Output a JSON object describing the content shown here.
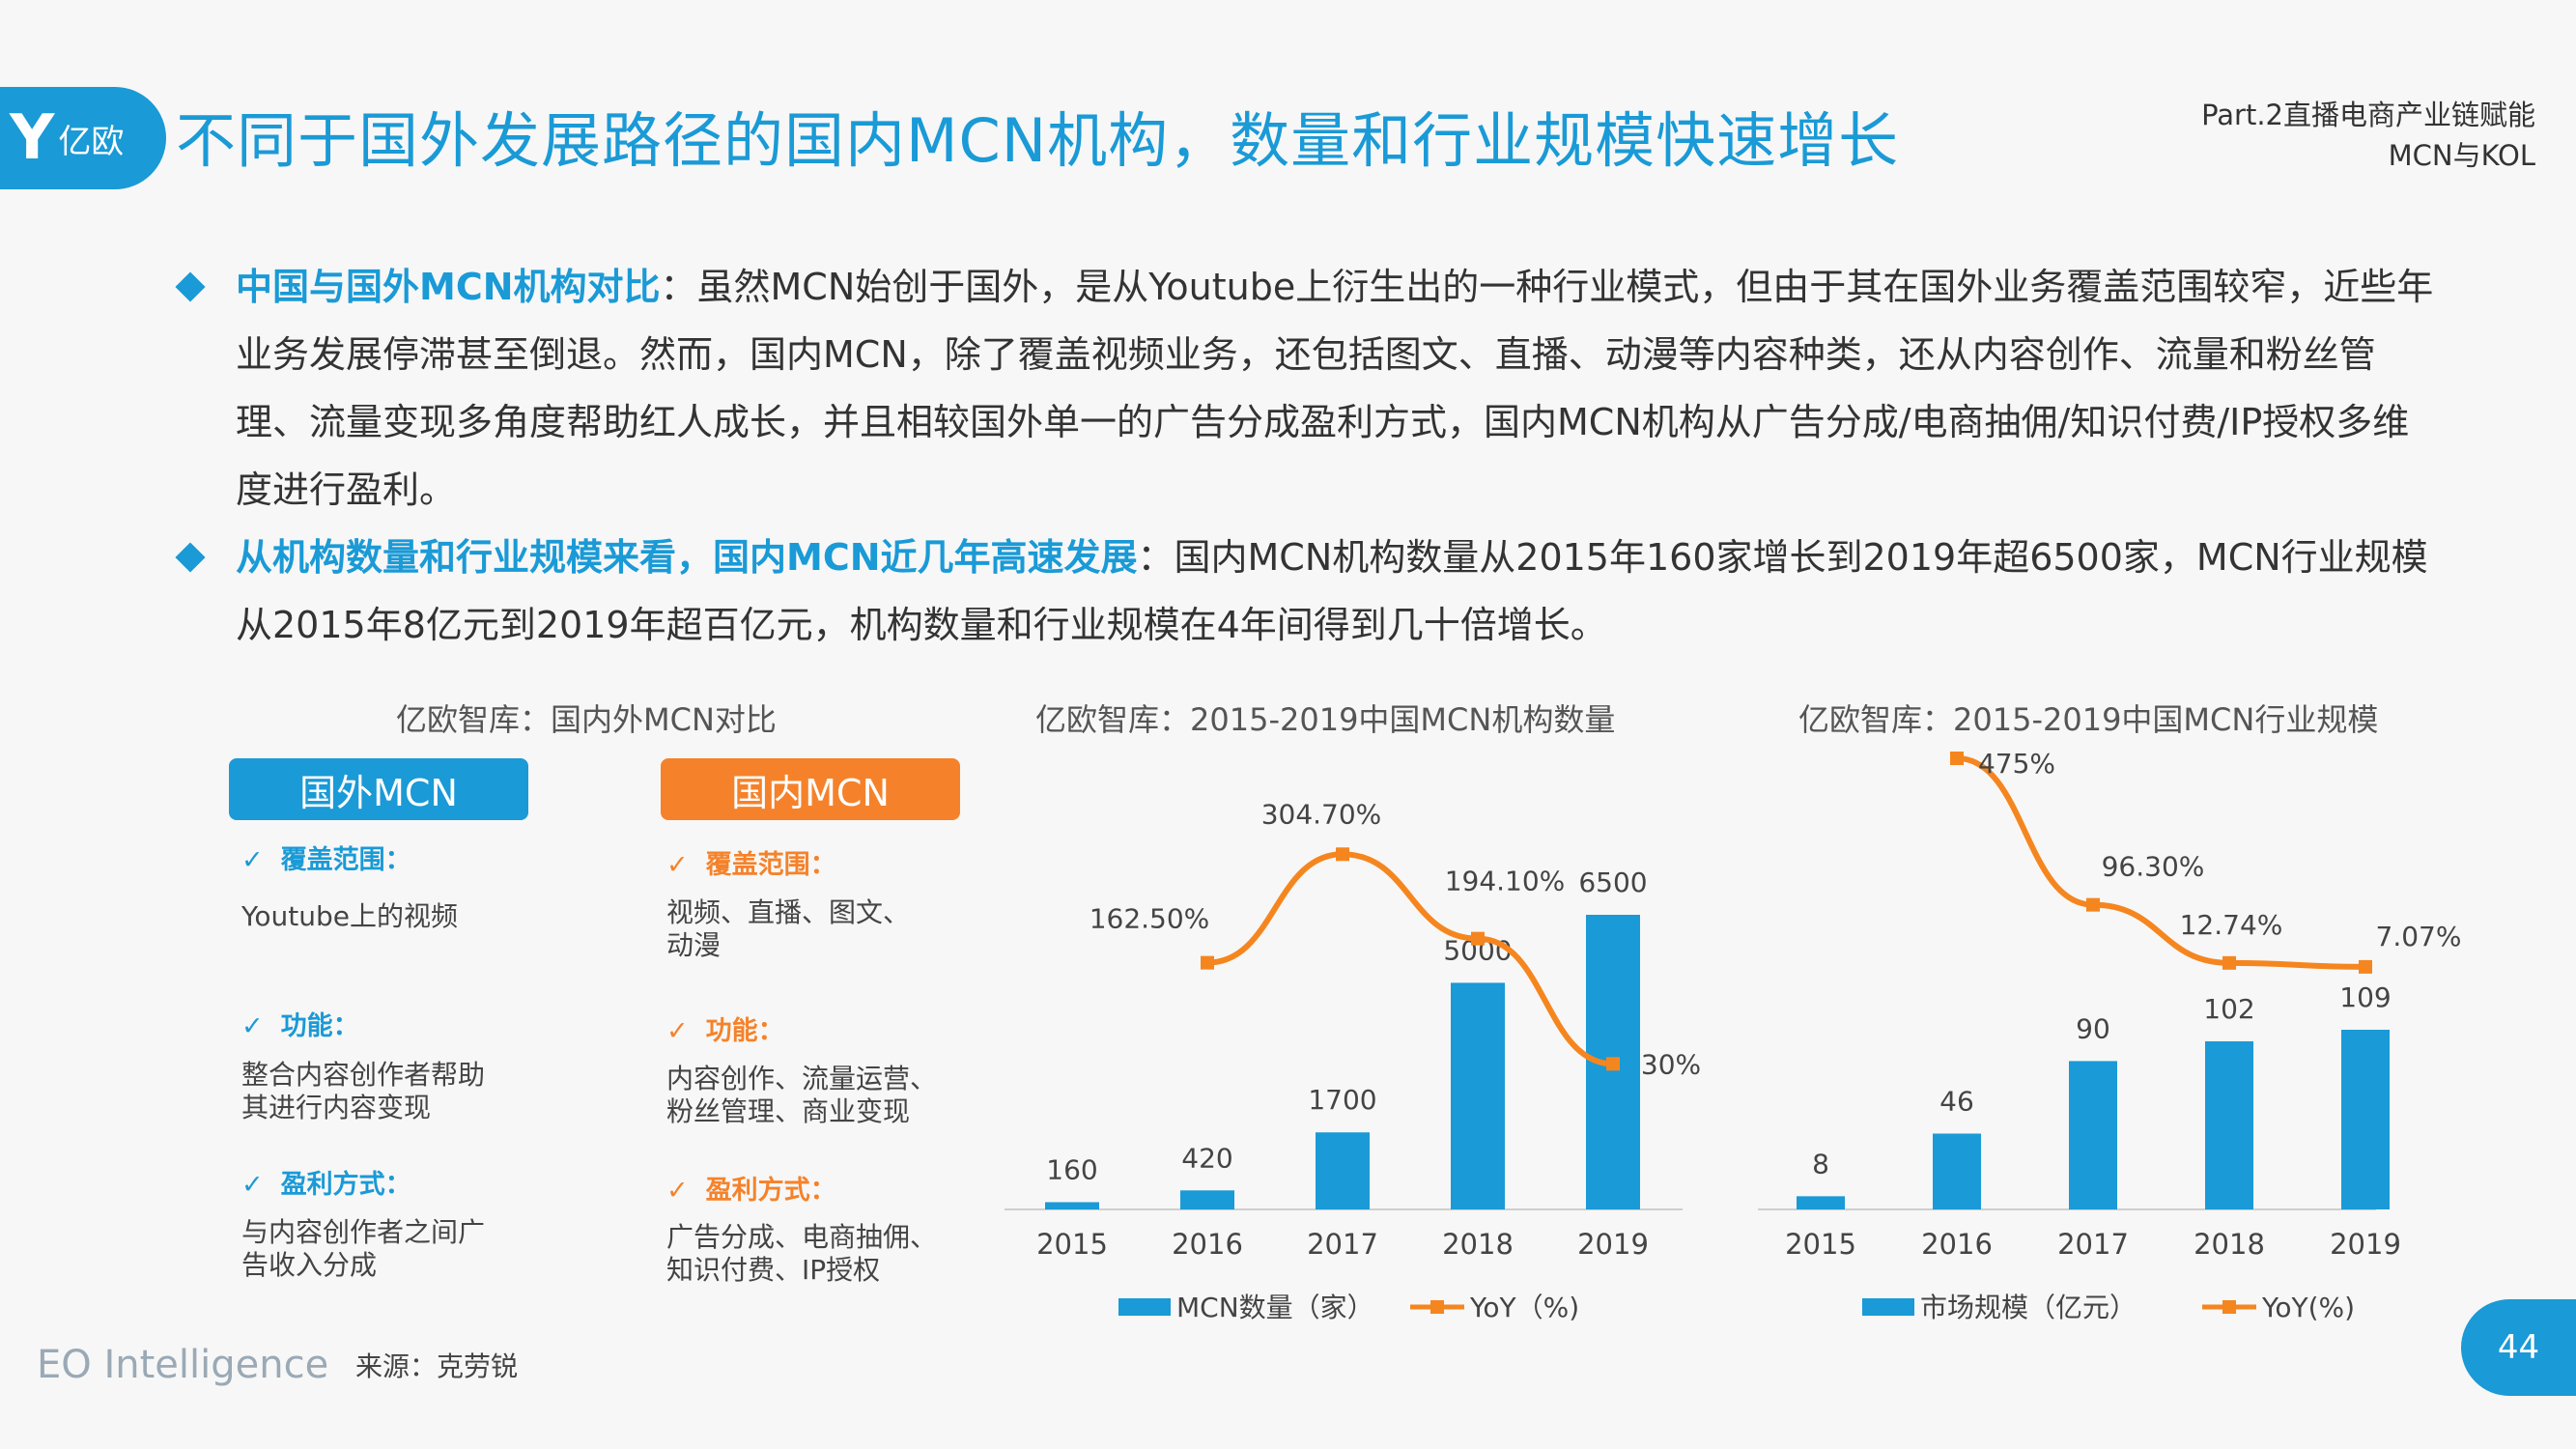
{
  "header": {
    "logo_mark": "Y",
    "logo_text": "亿欧",
    "title": "不同于国外发展路径的国内MCN机构，数量和行业规模快速增长",
    "section_line1": "Part.2直播电商产业链赋能",
    "section_line2": "MCN与KOL"
  },
  "bullets": [
    {
      "lead": "中国与国外MCN机构对比",
      "text": "：虽然MCN始创于国外，是从Youtube上衍生出的一种行业模式，但由于其在国外业务覆盖范围较窄，近些年业务发展停滞甚至倒退。然而，国内MCN，除了覆盖视频业务，还包括图文、直播、动漫等内容种类，还从内容创作、流量和粉丝管理、流量变现多角度帮助红人成长，并且相较国外单一的广告分成盈利方式，国内MCN机构从广告分成/电商抽佣/知识付费/IP授权多维度进行盈利。"
    },
    {
      "lead": "从机构数量和行业规模来看，国内MCN近几年高速发展",
      "text": "：国内MCN机构数量从2015年160家增长到2019年超6500家，MCN行业规模从2015年8亿元到2019年超百亿元，机构数量和行业规模在4年间得到几十倍增长。"
    }
  ],
  "comparison": {
    "title": "亿欧智库：国内外MCN对比",
    "foreign": {
      "label": "国外MCN",
      "coverage_head": "覆盖范围：",
      "coverage": "Youtube上的视频",
      "function_head": "功能：",
      "function": "整合内容创作者帮助\n其进行内容变现",
      "profit_head": "盈利方式：",
      "profit": "与内容创作者之间广\n告收入分成"
    },
    "domestic": {
      "label": "国内MCN",
      "coverage_head": "覆盖范围：",
      "coverage": "视频、直播、图文、\n动漫",
      "function_head": "功能：",
      "function": "内容创作、流量运营、\n粉丝管理、商业变现",
      "profit_head": "盈利方式：",
      "profit": "广告分成、电商抽佣、\n知识付费、IP授权"
    },
    "check_mark": "✓"
  },
  "chart_data": [
    {
      "type": "bar",
      "title": "亿欧智库：2015-2019中国MCN机构数量",
      "categories": [
        "2015",
        "2016",
        "2017",
        "2018",
        "2019"
      ],
      "series": [
        {
          "name": "MCN数量（家）",
          "type": "bar",
          "values": [
            160,
            420,
            1700,
            5000,
            6500
          ],
          "labels": [
            "160",
            "420",
            "1700",
            "5000",
            "6500"
          ],
          "color": "#1a9ad6"
        },
        {
          "name": "YoY（%)",
          "type": "line",
          "values": [
            null,
            162.5,
            304.7,
            194.1,
            30
          ],
          "labels": [
            "",
            "162.50%",
            "304.70%",
            "194.10%",
            "30%"
          ],
          "color": "#f5861f"
        }
      ]
    },
    {
      "type": "bar",
      "title": "亿欧智库：2015-2019中国MCN行业规模",
      "categories": [
        "2015",
        "2016",
        "2017",
        "2018",
        "2019"
      ],
      "series": [
        {
          "name": "市场规模（亿元）",
          "type": "bar",
          "values": [
            8,
            46,
            90,
            102,
            109
          ],
          "labels": [
            "8",
            "46",
            "90",
            "102",
            "109"
          ],
          "color": "#1a9ad6"
        },
        {
          "name": "YoY(%)",
          "type": "line",
          "values": [
            null,
            475,
            96.3,
            12.74,
            7.07
          ],
          "labels": [
            "",
            "475%",
            "96.30%",
            "12.74%",
            "7.07%"
          ],
          "color": "#f5861f"
        }
      ]
    }
  ],
  "footer": {
    "brand": "EO Intelligence",
    "source": "来源：克劳锐",
    "page": "44"
  }
}
